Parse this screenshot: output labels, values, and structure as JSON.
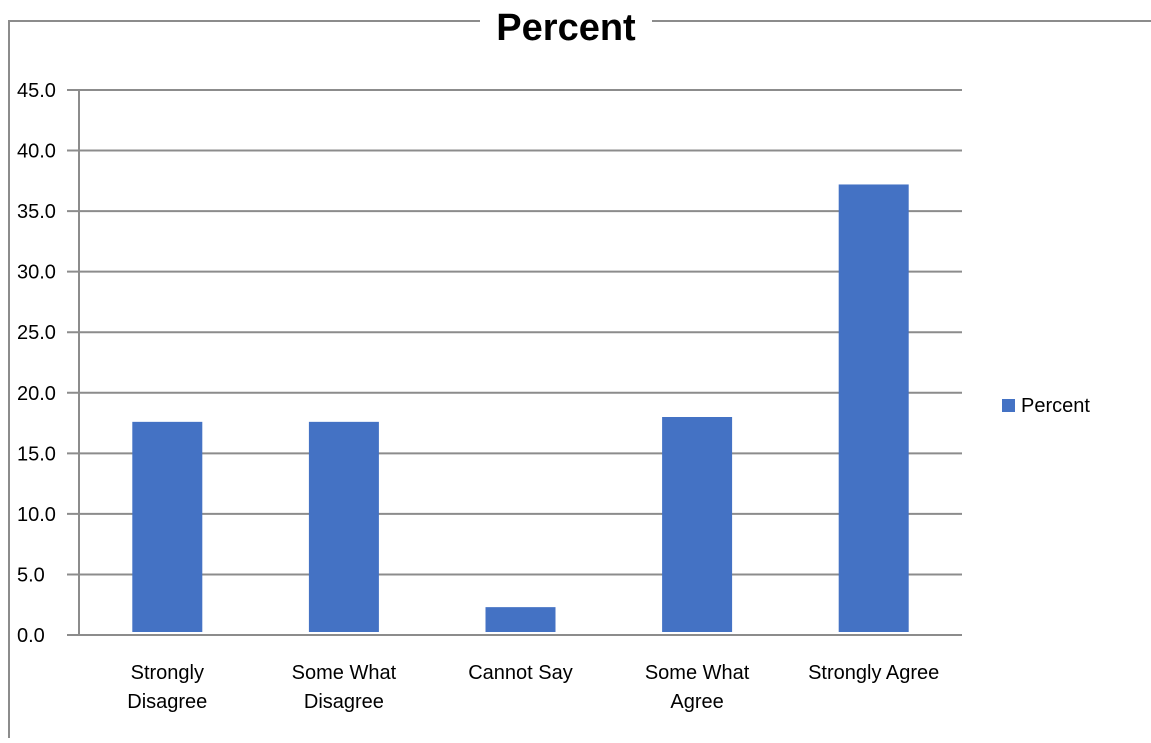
{
  "chart_data": {
    "type": "bar",
    "title": "Percent",
    "categories": [
      [
        "Strongly",
        "Disagree"
      ],
      [
        "Some What",
        "Disagree"
      ],
      [
        "Cannot Say"
      ],
      [
        "Some What",
        "Agree"
      ],
      [
        "Strongly Agree"
      ]
    ],
    "series": [
      {
        "name": "Percent",
        "values": [
          17.6,
          17.6,
          2.3,
          18.0,
          37.2
        ]
      }
    ],
    "ylim": [
      0,
      45
    ],
    "yticks": [
      "0.0",
      "5.0",
      "10.0",
      "15.0",
      "20.0",
      "25.0",
      "30.0",
      "35.0",
      "40.0",
      "45.0"
    ],
    "grid": true,
    "legend_position": "right",
    "colors": {
      "bar": "#4472C4",
      "grid": "#8c8c8c",
      "frame": "#8c8c8c"
    }
  }
}
